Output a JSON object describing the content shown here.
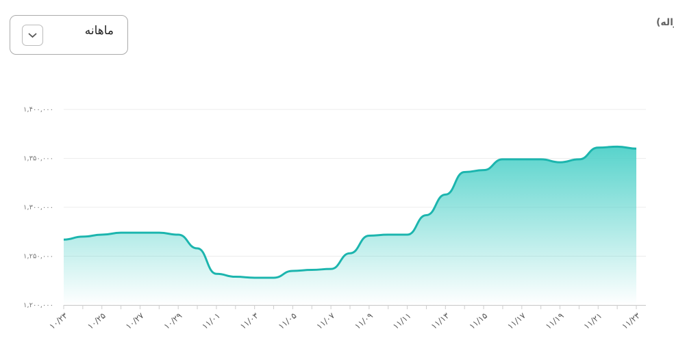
{
  "chart_data": {
    "type": "area",
    "title": "نمودار تغییرات دلار آمریکا (حواله)",
    "period_selector": "ماهانه",
    "categories": [
      "۱۰/۲۳",
      null,
      "۱۰/۲۵",
      null,
      "۱۰/۲۷",
      null,
      "۱۰/۲۹",
      null,
      "۱۱/۰۱",
      null,
      "۱۱/۰۳",
      null,
      "۱۱/۰۵",
      null,
      "۱۱/۰۷",
      null,
      "۱۱/۰۹",
      null,
      "۱۱/۱۱",
      null,
      "۱۱/۱۳",
      null,
      "۱۱/۱۵",
      null,
      "۱۱/۱۷",
      null,
      "۱۱/۱۹",
      null,
      "۱۱/۲۱",
      null,
      "۱۱/۲۳"
    ],
    "values": [
      1267000,
      1270000,
      1272000,
      1274000,
      1274000,
      1274000,
      1272000,
      1258000,
      1232000,
      1229000,
      1228000,
      1228000,
      1235000,
      1236000,
      1237000,
      1253000,
      1271000,
      1272000,
      1272000,
      1292000,
      1313000,
      1336000,
      1338000,
      1349000,
      1349000,
      1349000,
      1346000,
      1349000,
      1361000,
      1362000,
      1360000
    ],
    "color": "#1cb5ae",
    "ylim": [
      1200000,
      1400000
    ],
    "yticks": [
      {
        "value": 1200000,
        "label": "۱,۲۰۰,۰۰۰"
      },
      {
        "value": 1250000,
        "label": "۱,۲۵۰,۰۰۰"
      },
      {
        "value": 1300000,
        "label": "۱,۳۰۰,۰۰۰"
      },
      {
        "value": 1350000,
        "label": "۱,۳۵۰,۰۰۰"
      },
      {
        "value": 1400000,
        "label": "۱,۴۰۰,۰۰۰"
      }
    ],
    "grid": true
  }
}
